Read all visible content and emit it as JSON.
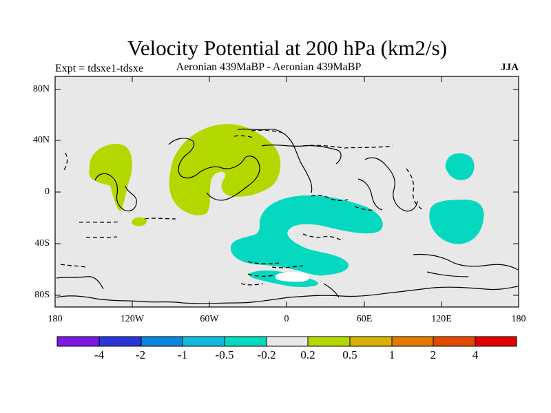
{
  "title": "Velocity Potential at 200 hPa (km2/s)",
  "subtitle_left": "Expt = tdsxe1-tdsxe",
  "subtitle_center": "Aeronian 439MaBP - Aeronian 439MaBP",
  "subtitle_right": "JJA",
  "map": {
    "projection": "cylindrical equidistant",
    "lon_range": [
      -180,
      180
    ],
    "lat_range": [
      -90,
      90
    ],
    "lat_labels": [
      "80N",
      "40N",
      "0",
      "40S",
      "80S"
    ],
    "lon_labels": [
      "180",
      "120W",
      "60W",
      "0",
      "60E",
      "120E",
      "180"
    ],
    "background_color": "#e8e8e8"
  },
  "colorbar": {
    "colors": [
      "#7b1ae0",
      "#2a36d8",
      "#0a86dc",
      "#12b9de",
      "#06d8c0",
      "#e8e8e8",
      "#b3d800",
      "#d8b000",
      "#e07b00",
      "#e04a00",
      "#e00000"
    ],
    "labels": [
      "-4",
      "-2",
      "-1",
      "-0.5",
      "-0.2",
      "0.2",
      "0.5",
      "1",
      "2",
      "4"
    ]
  },
  "contour_regions": {
    "positive_color": "#b3d800",
    "negative_color": "#06d8c0"
  }
}
